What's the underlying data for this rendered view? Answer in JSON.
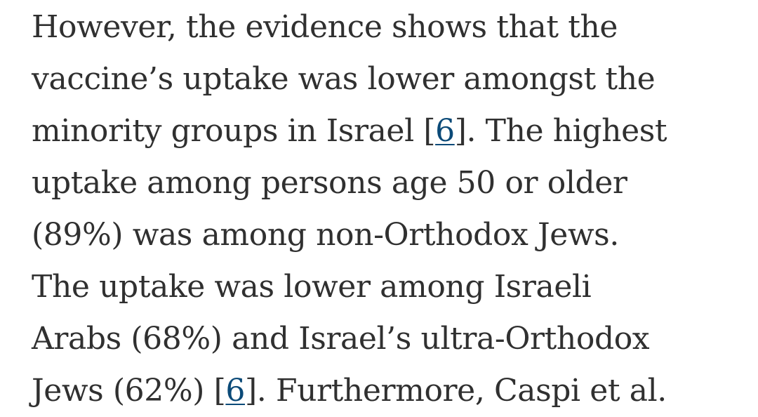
{
  "article": {
    "lines": [
      {
        "text": "However, the evidence shows that the"
      },
      {
        "text": "vaccine’s uptake was lower amongst the"
      },
      {
        "before": "minority groups in Israel [",
        "ref": "6",
        "after": "]. The highest"
      },
      {
        "text": "uptake among persons age 50 or older"
      },
      {
        "text": "(89%) was among non-Orthodox Jews."
      },
      {
        "text": "The uptake was lower among Israeli"
      },
      {
        "text": "Arabs (68%) and Israel’s ultra-Orthodox"
      },
      {
        "before": "Jews (62%) [",
        "ref": "6",
        "after": "]. Furthermore, Caspi et al."
      }
    ]
  },
  "colors": {
    "text": "#303030",
    "link": "#0b4a78",
    "background": "#ffffff"
  }
}
